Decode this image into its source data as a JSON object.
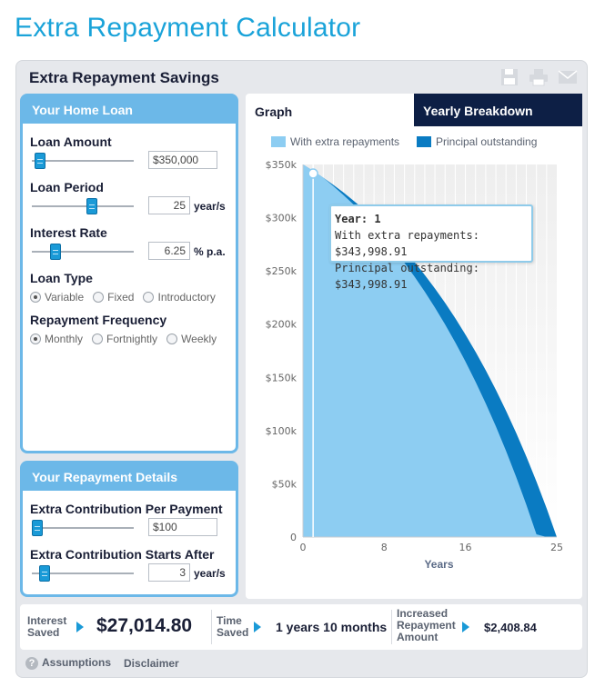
{
  "page": {
    "title": "Extra Repayment Calculator"
  },
  "savings": {
    "title": "Extra Repayment Savings",
    "tools": [
      {
        "icon": "save-icon"
      },
      {
        "icon": "print-icon"
      },
      {
        "icon": "email-icon"
      }
    ]
  },
  "home_loan": {
    "header": "Your Home Loan",
    "loan_amount": {
      "label": "Loan Amount",
      "value": "$350,000",
      "slider_fraction": 0.03
    },
    "loan_period": {
      "label": "Loan Period",
      "value": "25",
      "unit": "year/s",
      "slider_fraction": 0.6
    },
    "interest_rate": {
      "label": "Interest Rate",
      "value": "6.25",
      "unit": "% p.a.",
      "slider_fraction": 0.2
    },
    "loan_type": {
      "label": "Loan Type",
      "options": [
        "Variable",
        "Fixed",
        "Introductory"
      ],
      "selected": "Variable"
    },
    "repayment_frequency": {
      "label": "Repayment Frequency",
      "options": [
        "Monthly",
        "Fortnightly",
        "Weekly"
      ],
      "selected": "Monthly"
    }
  },
  "repayment_details": {
    "header": "Your Repayment Details",
    "extra_contribution": {
      "label": "Extra Contribution Per Payment",
      "value": "$100",
      "slider_fraction": 0.0
    },
    "starts_after": {
      "label": "Extra Contribution Starts After",
      "value": "3",
      "unit": "year/s",
      "slider_fraction": 0.08
    }
  },
  "tabs": {
    "graph": "Graph",
    "yearly": "Yearly Breakdown"
  },
  "chart_data": {
    "type": "area",
    "x": [
      0,
      1,
      2,
      3,
      4,
      5,
      6,
      7,
      8,
      9,
      10,
      11,
      12,
      13,
      14,
      15,
      16,
      17,
      18,
      19,
      20,
      21,
      22,
      23,
      24,
      25
    ],
    "series": [
      {
        "name": "Principal outstanding",
        "color": "#0a7bc2",
        "values": [
          350000,
          344000,
          337600,
          330800,
          323600,
          315900,
          307700,
          299000,
          289700,
          279800,
          269300,
          258100,
          246200,
          233500,
          220000,
          205600,
          190300,
          174000,
          156700,
          138300,
          118700,
          97900,
          75700,
          52100,
          27000,
          0
        ]
      },
      {
        "name": "With extra repayments",
        "color": "#8dcdf2",
        "values": [
          350000,
          344000,
          337600,
          329600,
          321200,
          312200,
          302600,
          292400,
          281500,
          269900,
          257600,
          244500,
          230500,
          215600,
          199800,
          182900,
          165000,
          145900,
          125600,
          104000,
          81000,
          56500,
          30400,
          2600,
          0,
          0
        ]
      }
    ],
    "xlabel": "Years",
    "xticks": [
      "0",
      "8",
      "16",
      "25"
    ],
    "xtick_values": [
      0,
      8,
      16,
      25
    ],
    "yticks": [
      "0",
      "$50k",
      "$100k",
      "$150k",
      "$200k",
      "$250k",
      "$300k",
      "$350k"
    ],
    "ytick_values": [
      0,
      50000,
      100000,
      150000,
      200000,
      250000,
      300000,
      350000
    ],
    "xlim": [
      0,
      25
    ],
    "ylim": [
      0,
      350000
    ],
    "grid": true,
    "legend_position": "top",
    "tooltip": {
      "x": 1,
      "year": "Year: 1",
      "extra_line": "With extra repayments: $343,998.91",
      "principal_line": "Principal outstanding: $343,998.91"
    }
  },
  "summary": {
    "interest_saved_label": [
      "Interest",
      "Saved"
    ],
    "interest_saved_value": "$27,014.80",
    "time_saved_label": [
      "Time",
      "Saved"
    ],
    "time_saved_value": "1 years 10 months",
    "increased_label": [
      "Increased",
      "Repayment",
      "Amount"
    ],
    "increased_value": "$2,408.84"
  },
  "footer": {
    "assumptions": "Assumptions",
    "disclaimer": "Disclaimer"
  }
}
